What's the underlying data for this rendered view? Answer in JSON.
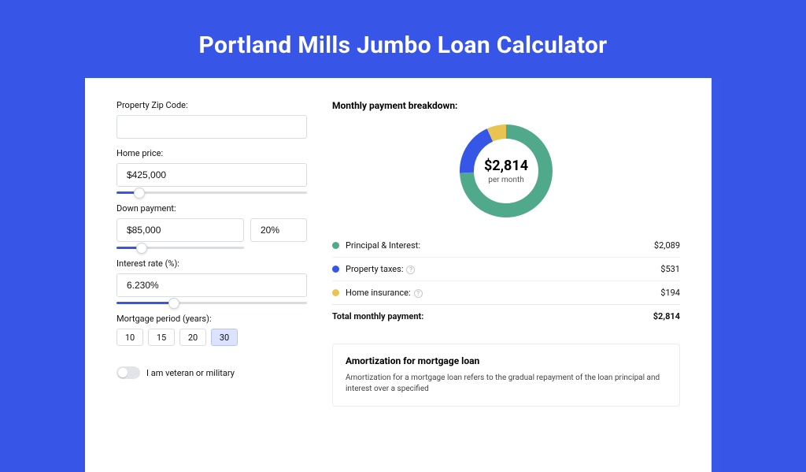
{
  "page": {
    "title": "Portland Mills Jumbo Loan Calculator",
    "background": "#3755e6",
    "inner_bg": "#3a58e8",
    "card_bg": "#ffffff"
  },
  "form": {
    "zip": {
      "label": "Property Zip Code:",
      "value": ""
    },
    "home_price": {
      "label": "Home price:",
      "value": "$425,000",
      "slider_pct": 12
    },
    "down_payment": {
      "label": "Down payment:",
      "value": "$85,000",
      "pct_value": "20%",
      "slider_pct": 20
    },
    "interest_rate": {
      "label": "Interest rate (%):",
      "value": "6.230%",
      "slider_pct": 30
    },
    "mortgage_period": {
      "label": "Mortgage period (years):",
      "options": [
        "10",
        "15",
        "20",
        "30"
      ],
      "selected": "30"
    },
    "veteran": {
      "label": "I am veteran or military",
      "on": false
    }
  },
  "breakdown": {
    "title": "Monthly payment breakdown:",
    "center_amount": "$2,814",
    "center_sub": "per month",
    "donut": {
      "radius": 50,
      "stroke": 18,
      "segments": [
        {
          "label": "Principal & Interest:",
          "value": "$2,089",
          "color": "#51a98b",
          "fraction": 0.742,
          "show_info": false
        },
        {
          "label": "Property taxes:",
          "value": "$531",
          "color": "#3556e6",
          "fraction": 0.189,
          "show_info": true
        },
        {
          "label": "Home insurance:",
          "value": "$194",
          "color": "#eac452",
          "fraction": 0.069,
          "show_info": true
        }
      ]
    },
    "total_label": "Total monthly payment:",
    "total_value": "$2,814"
  },
  "amort": {
    "title": "Amortization for mortgage loan",
    "body": "Amortization for a mortgage loan refers to the gradual repayment of the loan principal and interest over a specified"
  }
}
